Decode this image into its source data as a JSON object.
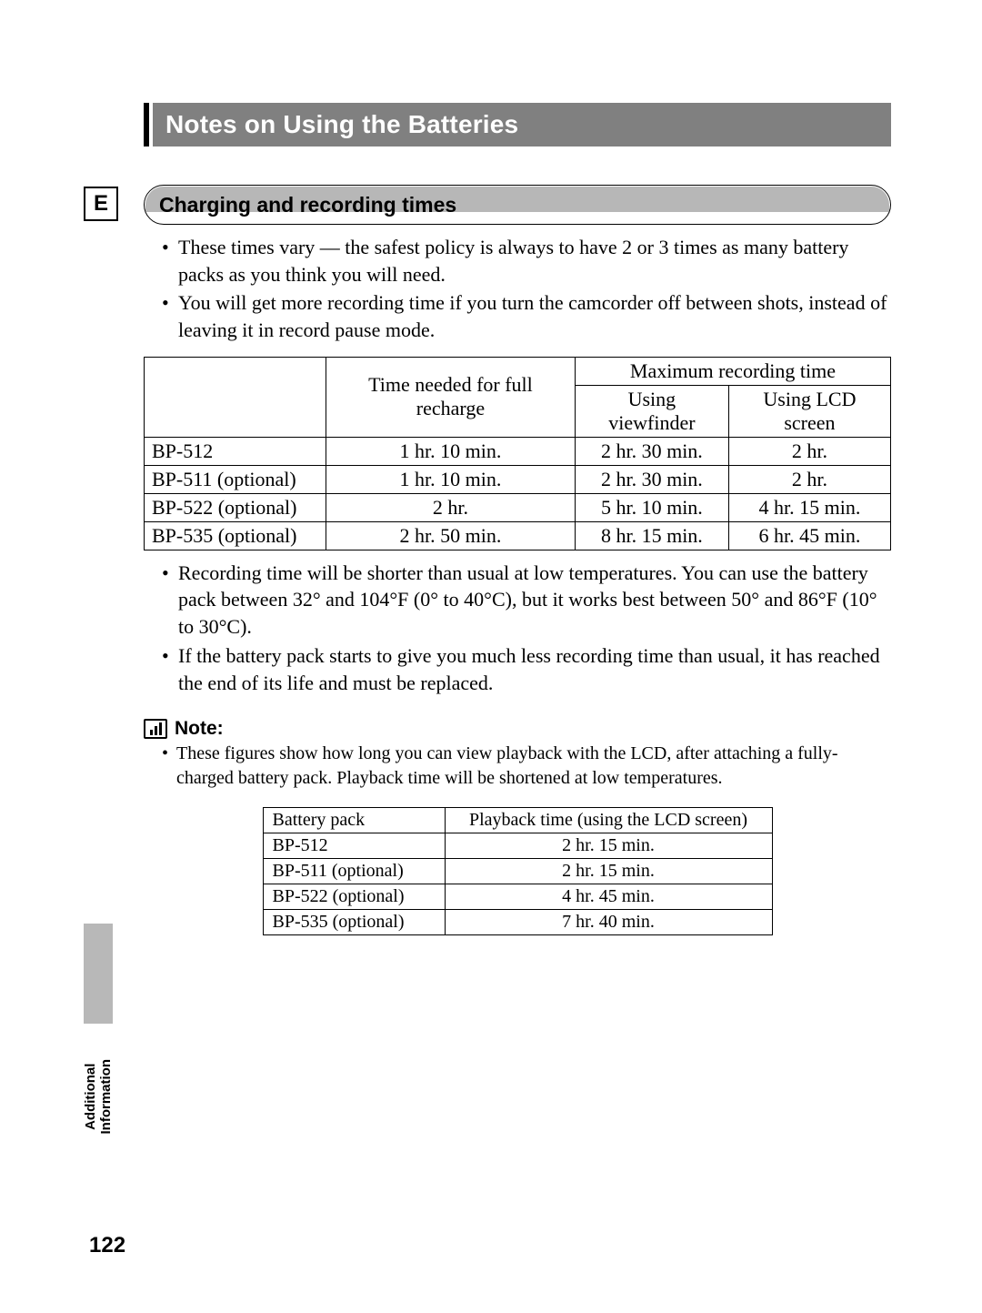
{
  "page_number": "122",
  "language_tab": "E",
  "side_section_label": "Additional\nInformation",
  "title": "Notes on Using the Batteries",
  "section": {
    "heading": "Charging and recording times",
    "bullets_top": [
      "These times vary — the safest policy is always to have 2 or 3 times as many battery packs as you think you will need.",
      "You will get more recording time if you turn the camcorder off between shots, instead of leaving it in record pause mode."
    ],
    "bullets_bottom": [
      "Recording time will be shorter than usual at low temperatures. You can use the battery pack between 32° and 104°F (0° to 40°C), but it works best between 50° and 86°F (10° to 30°C).",
      "If the battery pack starts to give you much less recording time than usual, it has reached the end of its life and must be replaced."
    ]
  },
  "rec_table": {
    "header_recharge": "Time needed for full recharge",
    "header_maxrec": "Maximum recording time",
    "header_viewfinder": "Using viewfinder",
    "header_lcd": "Using LCD screen",
    "rows": [
      {
        "model": "BP-512",
        "recharge": "1 hr. 10 min.",
        "viewfinder": "2 hr. 30 min.",
        "lcd": "2 hr."
      },
      {
        "model": "BP-511 (optional)",
        "recharge": "1 hr. 10 min.",
        "viewfinder": "2 hr. 30 min.",
        "lcd": "2 hr."
      },
      {
        "model": "BP-522 (optional)",
        "recharge": "2 hr.",
        "viewfinder": "5 hr. 10 min.",
        "lcd": "4 hr. 15 min."
      },
      {
        "model": "BP-535 (optional)",
        "recharge": "2 hr. 50 min.",
        "viewfinder": "8 hr. 15 min.",
        "lcd": "6 hr. 45 min."
      }
    ]
  },
  "note": {
    "label": "Note:",
    "bullets": [
      "These figures show how long you can view playback with the LCD, after attaching a fully-charged battery pack. Playback time will be shortened at low temperatures."
    ]
  },
  "pb_table": {
    "header_pack": "Battery pack",
    "header_playback": "Playback time (using the LCD screen)",
    "rows": [
      {
        "model": "BP-512",
        "time": "2 hr. 15 min."
      },
      {
        "model": "BP-511 (optional)",
        "time": "2 hr. 15 min."
      },
      {
        "model": "BP-522 (optional)",
        "time": "4 hr. 45 min."
      },
      {
        "model": "BP-535 (optional)",
        "time": "7 hr. 40 min."
      }
    ]
  },
  "colors": {
    "title_bg": "#808080",
    "title_lead": "#000000",
    "title_text": "#ffffff",
    "pill_shade": "#b7b7b7",
    "side_tab": "#b8b8b8",
    "text": "#000000",
    "page_bg": "#ffffff"
  },
  "typography": {
    "title_pt": 28,
    "pill_pt": 23,
    "body_pt": 22,
    "note_body_pt": 20,
    "page_num_pt": 24,
    "side_label_pt": 15,
    "body_family": "Times New Roman",
    "heading_family": "Helvetica"
  }
}
